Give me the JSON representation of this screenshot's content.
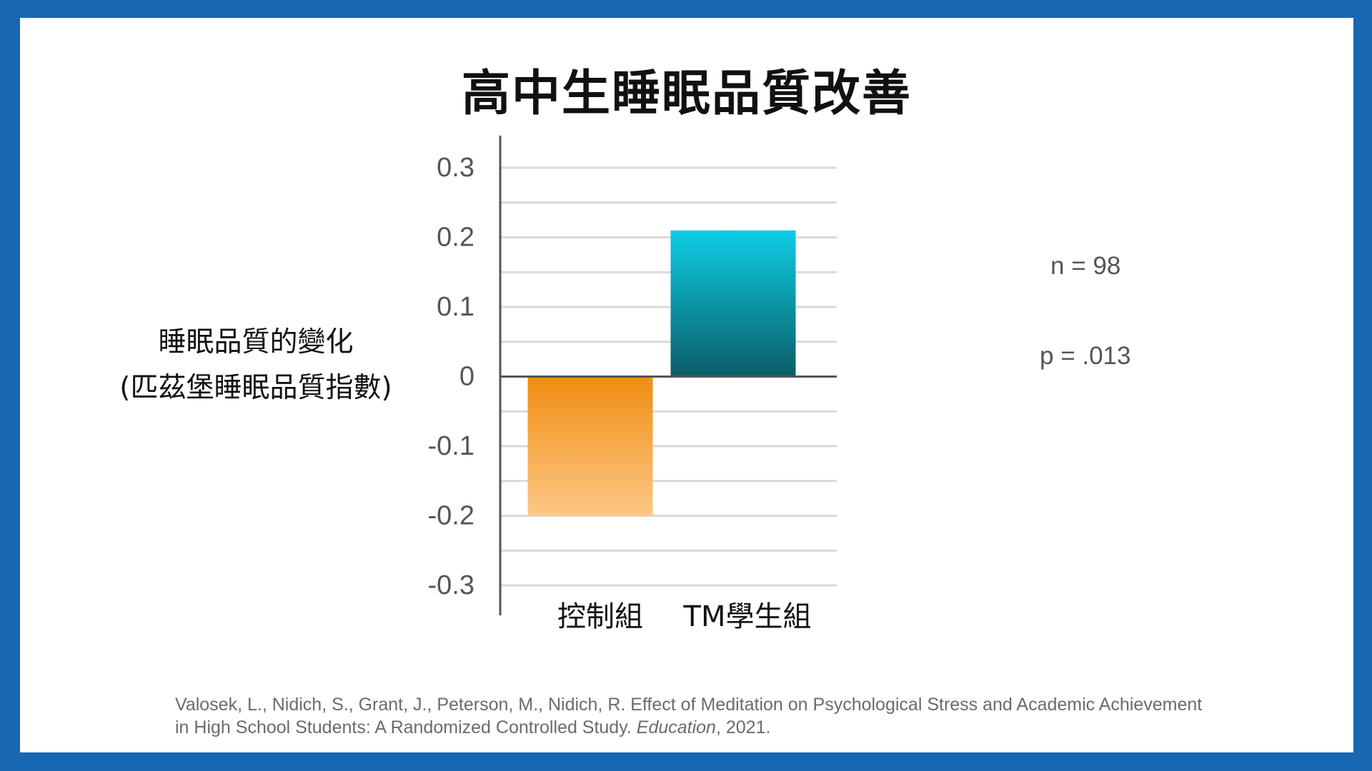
{
  "slide": {
    "title": "高中生睡眠品質改善",
    "border_color": "#1767b3"
  },
  "stats": {
    "n_text": "n = 98",
    "p_text": "p = .013"
  },
  "citation": {
    "authors": "Valosek, L., Nidich, S., Grant, J., Peterson, M., Nidich, R.  Effect of Meditation on Psychological Stress and Academic Achievement",
    "line2_before": "in High School Students: A Randomized Controlled Study. ",
    "journal": "Education",
    "line2_after": ", 2021."
  },
  "chart_data": {
    "type": "bar",
    "title": "",
    "ylabel_line1": "睡眠品質的變化",
    "ylabel_line2": "(匹茲堡睡眠品質指數)",
    "xlabel": "",
    "categories": [
      "控制組",
      "TM學生組"
    ],
    "values": [
      -0.2,
      0.21
    ],
    "ylim": [
      -0.3,
      0.3
    ],
    "yticks": [
      "0.3",
      "0.2",
      "0.1",
      "0",
      "-0.1",
      "-0.2",
      "-0.3"
    ],
    "grid": true,
    "colors": [
      {
        "top": "#f08d12",
        "bottom": "#fdc886"
      },
      {
        "top": "#0ecde6",
        "bottom": "#0a5d66"
      }
    ]
  }
}
